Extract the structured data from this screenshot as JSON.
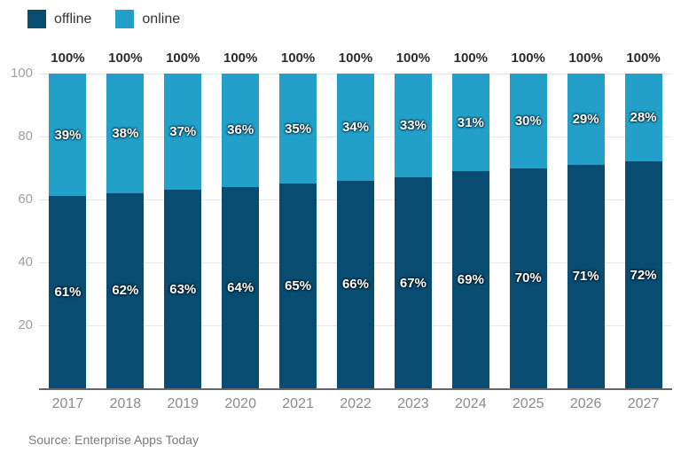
{
  "chart_data": {
    "type": "bar",
    "stacked": true,
    "title": "",
    "categories": [
      "2017",
      "2018",
      "2019",
      "2020",
      "2021",
      "2022",
      "2023",
      "2024",
      "2025",
      "2026",
      "2027"
    ],
    "series": [
      {
        "name": "offline",
        "color": "#084d71",
        "values": [
          61,
          62,
          63,
          64,
          65,
          66,
          67,
          69,
          70,
          71,
          72
        ]
      },
      {
        "name": "online",
        "color": "#22a0c9",
        "values": [
          39,
          38,
          37,
          36,
          35,
          34,
          33,
          31,
          30,
          29,
          28
        ]
      }
    ],
    "totals": [
      "100%",
      "100%",
      "100%",
      "100%",
      "100%",
      "100%",
      "100%",
      "100%",
      "100%",
      "100%",
      "100%"
    ],
    "value_suffix": "%",
    "ylim": [
      0,
      100
    ],
    "yticks": [
      20,
      40,
      60,
      80,
      100
    ],
    "grid": true,
    "legend_position": "top-left",
    "axis_line_color": "#666666",
    "gridline_color": "#e7e7e7"
  },
  "source": {
    "text": "Source: Enterprise Apps Today"
  }
}
